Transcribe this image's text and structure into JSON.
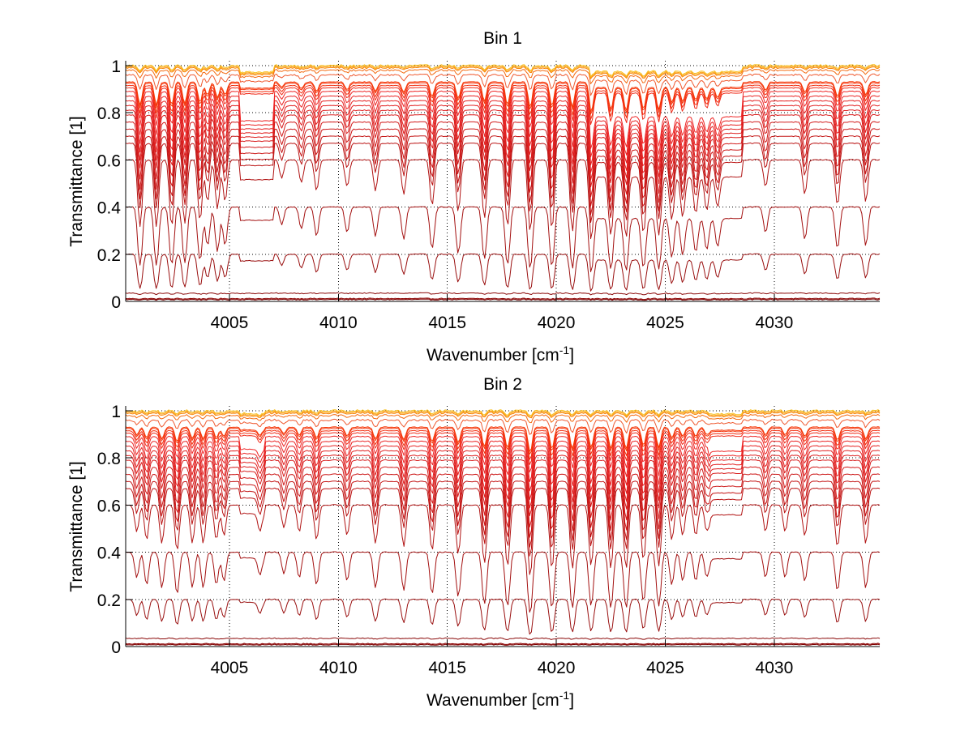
{
  "chart_data": [
    {
      "type": "line",
      "title": "Bin 1",
      "xlabel": "Wavenumber [cm",
      "xlabel_superscript": "-1",
      "xlabel_suffix": "]",
      "ylabel": "Transmittance [1]",
      "xlim": [
        4000.24,
        4034.84
      ],
      "ylim": [
        0,
        1.02
      ],
      "xticks": [
        4005,
        4010,
        4015,
        4020,
        4025,
        4030
      ],
      "xtick_labels": [
        "4005",
        "4010",
        "4015",
        "4020",
        "4025",
        "4030"
      ],
      "yticks": [
        0,
        0.2,
        0.4,
        0.6,
        0.8,
        1
      ],
      "ytick_labels": [
        "0",
        "0.2",
        "0.4",
        "0.6",
        "0.8",
        "1"
      ],
      "grid": true,
      "legend": "none",
      "line_centers": [
        4000.9,
        4001.65,
        4002.35,
        4002.95,
        4003.65,
        4004.0,
        4004.45,
        4004.8,
        4007.4,
        4008.3,
        4009.0,
        4010.4,
        4011.7,
        4013.0,
        4014.3,
        4015.5,
        4016.7,
        4017.76,
        4018.8,
        4019.8,
        4020.74,
        4021.6,
        4022.5,
        4023.2,
        4024.0,
        4024.7,
        4025.3,
        4025.8,
        4026.4,
        4026.9,
        4027.4,
        4029.6,
        4031.4,
        4032.9,
        4034.2
      ],
      "line_strengths": [
        0.9,
        0.9,
        0.9,
        0.85,
        0.8,
        0.5,
        0.6,
        0.5,
        0.2,
        0.25,
        0.35,
        0.3,
        0.35,
        0.4,
        0.55,
        0.65,
        0.75,
        0.9,
        1.0,
        0.95,
        1.0,
        1.0,
        0.9,
        0.95,
        0.85,
        0.9,
        0.6,
        0.55,
        0.5,
        0.45,
        0.4,
        0.3,
        0.4,
        0.55,
        0.5
      ],
      "step_segments": [
        [
          4005.5,
          4007.0,
          0.14
        ],
        [
          4021.5,
          4028.5,
          0.12
        ]
      ],
      "series_baselines": [
        0.008,
        0.012,
        0.035,
        0.2,
        0.4,
        0.6,
        0.67,
        0.7,
        0.73,
        0.76,
        0.79,
        0.81,
        0.83,
        0.85,
        0.87,
        0.89,
        0.905,
        0.915,
        0.925,
        0.93,
        0.96,
        0.98,
        0.99,
        0.995,
        1.0
      ],
      "series_colors": [
        "#7f0000",
        "#8b0000",
        "#8b0a0a",
        "#990f0f",
        "#a31010",
        "#b01212",
        "#bb1414",
        "#c41616",
        "#cc1818",
        "#d21a1a",
        "#d81c1c",
        "#dd1e1e",
        "#e22020",
        "#e62222",
        "#ea2424",
        "#ee2626",
        "#f02a18",
        "#f22e10",
        "#f4320a",
        "#f63808",
        "#ef5a30",
        "#f46a10",
        "#f7860a",
        "#fba010",
        "#f8c020"
      ]
    },
    {
      "type": "line",
      "title": "Bin 2",
      "xlabel": "Wavenumber [cm",
      "xlabel_superscript": "-1",
      "xlabel_suffix": "]",
      "ylabel": "Transmittance [1]",
      "xlim": [
        4000.24,
        4034.84
      ],
      "ylim": [
        0,
        1.02
      ],
      "xticks": [
        4005,
        4010,
        4015,
        4020,
        4025,
        4030
      ],
      "xtick_labels": [
        "4005",
        "4010",
        "4015",
        "4020",
        "4025",
        "4030"
      ],
      "yticks": [
        0,
        0.2,
        0.4,
        0.6,
        0.8,
        1
      ],
      "ytick_labels": [
        "0",
        "0.2",
        "0.4",
        "0.6",
        "0.8",
        "1"
      ],
      "grid": true,
      "legend": "none",
      "line_centers": [
        4000.75,
        4001.2,
        4001.9,
        4002.6,
        4003.3,
        4003.8,
        4004.4,
        4004.75,
        4006.4,
        4007.5,
        4008.2,
        4009.0,
        4010.4,
        4011.7,
        4013.0,
        4014.3,
        4015.5,
        4016.7,
        4017.76,
        4018.8,
        4019.8,
        4020.74,
        4021.6,
        4022.5,
        4023.2,
        4024.0,
        4024.7,
        4025.3,
        4025.8,
        4026.4,
        4026.9,
        4029.6,
        4030.5,
        4031.4,
        4032.9,
        4034.2
      ],
      "line_strengths": [
        0.3,
        0.4,
        0.45,
        0.55,
        0.45,
        0.45,
        0.4,
        0.35,
        0.2,
        0.25,
        0.3,
        0.4,
        0.35,
        0.45,
        0.5,
        0.55,
        0.6,
        0.75,
        0.8,
        1.0,
        0.85,
        0.85,
        0.8,
        0.85,
        0.85,
        0.7,
        0.8,
        0.4,
        0.35,
        0.35,
        0.3,
        0.3,
        0.3,
        0.35,
        0.5,
        0.45
      ],
      "step_segments": [
        [
          4005.5,
          4006.6,
          0.06
        ],
        [
          4027.0,
          4028.5,
          0.07
        ]
      ],
      "series_baselines": [
        0.008,
        0.012,
        0.035,
        0.2,
        0.4,
        0.6,
        0.67,
        0.7,
        0.73,
        0.76,
        0.79,
        0.81,
        0.83,
        0.85,
        0.87,
        0.89,
        0.905,
        0.915,
        0.925,
        0.93,
        0.96,
        0.98,
        0.99,
        0.995,
        1.0
      ],
      "series_colors": [
        "#7f0000",
        "#8b0000",
        "#8b0a0a",
        "#990f0f",
        "#a31010",
        "#b01212",
        "#bb1414",
        "#c41616",
        "#cc1818",
        "#d21a1a",
        "#d81c1c",
        "#dd1e1e",
        "#e22020",
        "#e62222",
        "#ea2424",
        "#ee2626",
        "#f02a18",
        "#f22e10",
        "#f4320a",
        "#f63808",
        "#ef5a30",
        "#f46a10",
        "#f7860a",
        "#fba010",
        "#f8c020"
      ]
    }
  ]
}
